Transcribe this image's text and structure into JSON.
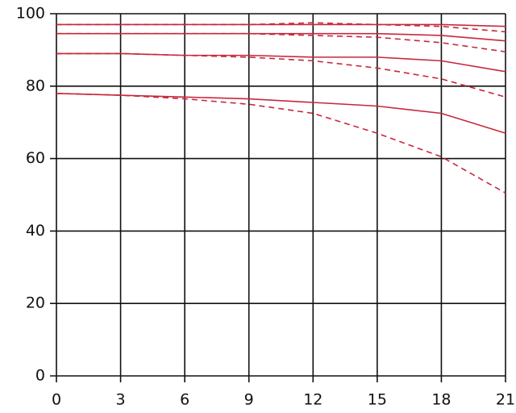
{
  "chart_data": {
    "type": "line",
    "x": [
      0,
      3,
      6,
      9,
      12,
      15,
      18,
      21
    ],
    "series": [
      {
        "color": "#c8283c",
        "style": "solid",
        "values": [
          97,
          97,
          97,
          97,
          97,
          97,
          97,
          96.5
        ]
      },
      {
        "color": "#c8283c",
        "style": "dashed",
        "values": [
          97,
          97,
          97,
          97,
          97.5,
          97,
          96.5,
          95
        ]
      },
      {
        "color": "#c8283c",
        "style": "solid",
        "values": [
          94.5,
          94.5,
          94.5,
          94.5,
          94.5,
          94.5,
          94,
          92.5
        ]
      },
      {
        "color": "#c8283c",
        "style": "dashed",
        "values": [
          94.5,
          94.5,
          94.5,
          94.5,
          94,
          93.5,
          92,
          89.5
        ]
      },
      {
        "color": "#c8283c",
        "style": "solid",
        "values": [
          89,
          89,
          88.5,
          88.5,
          88,
          88,
          87,
          84
        ]
      },
      {
        "color": "#c8283c",
        "style": "dashed",
        "values": [
          89,
          89,
          88.5,
          88,
          87,
          85,
          82,
          77
        ]
      },
      {
        "color": "#c8283c",
        "style": "solid",
        "values": [
          78,
          77.5,
          77,
          76.5,
          75.5,
          74.5,
          72.5,
          67
        ]
      },
      {
        "color": "#c8283c",
        "style": "dashed",
        "values": [
          78,
          77.5,
          76.5,
          75,
          72.5,
          67,
          60.5,
          50.5
        ]
      }
    ],
    "xlim": [
      0,
      21
    ],
    "xticks": [
      0,
      3,
      6,
      9,
      12,
      15,
      18,
      21
    ],
    "ylim": [
      0,
      100
    ],
    "yticks": [
      0,
      20,
      40,
      60,
      80,
      100
    ],
    "grid": true
  }
}
